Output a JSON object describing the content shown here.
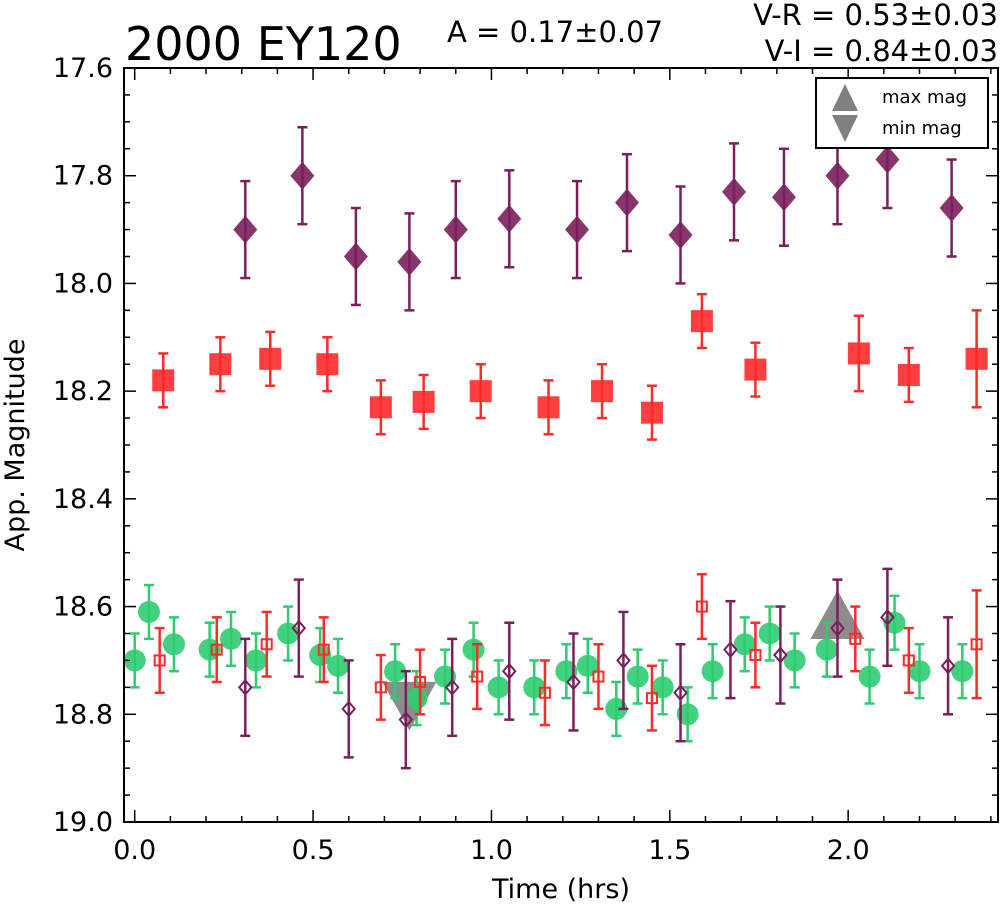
{
  "chart_data": {
    "type": "scatter",
    "title": "2000 EY120",
    "amplitude_label": "A  = 0.17±0.07",
    "color_labels": [
      "V-R = 0.53±0.03",
      "V-I  = 0.84±0.03"
    ],
    "xlabel": "Time (hrs)",
    "ylabel": "App. Magnitude",
    "xlim": [
      -0.03,
      2.42
    ],
    "ylim": [
      19.0,
      17.6
    ],
    "y_inverted": true,
    "x_ticks": [
      0.0,
      0.5,
      1.0,
      1.5,
      2.0
    ],
    "x_tick_labels": [
      "0.0",
      "0.5",
      "1.0",
      "1.5",
      "2.0"
    ],
    "y_ticks": [
      17.6,
      17.8,
      18.0,
      18.2,
      18.4,
      18.6,
      18.8,
      19.0
    ],
    "y_tick_labels": [
      "17.6",
      "17.8",
      "18.0",
      "18.2",
      "18.4",
      "18.6",
      "18.8",
      "19.0"
    ],
    "grid": false,
    "legend": {
      "position": "top-right",
      "entries": [
        {
          "label": "max mag",
          "marker": "triangle-up",
          "color": "#808080"
        },
        {
          "label": "min mag",
          "marker": "triangle-down",
          "color": "#808080"
        }
      ]
    },
    "colors": {
      "green": "#2ecc71",
      "red": "#ff2a2a",
      "purple": "#7a1f5c",
      "extrema": "#808080"
    },
    "series": [
      {
        "id": "green-circles",
        "marker": "circle",
        "filled": true,
        "color": "#2ecc71",
        "x": [
          0.0,
          0.04,
          0.11,
          0.21,
          0.27,
          0.34,
          0.43,
          0.52,
          0.57,
          0.73,
          0.79,
          0.87,
          0.95,
          1.02,
          1.12,
          1.21,
          1.27,
          1.35,
          1.41,
          1.48,
          1.55,
          1.62,
          1.71,
          1.78,
          1.85,
          1.94,
          2.06,
          2.13,
          2.2,
          2.32
        ],
        "y": [
          18.7,
          18.61,
          18.67,
          18.68,
          18.66,
          18.7,
          18.65,
          18.69,
          18.71,
          18.72,
          18.77,
          18.73,
          18.68,
          18.75,
          18.75,
          18.72,
          18.71,
          18.79,
          18.73,
          18.75,
          18.8,
          18.72,
          18.67,
          18.65,
          18.7,
          18.68,
          18.73,
          18.63,
          18.72,
          18.72
        ],
        "err": [
          0.05,
          0.05,
          0.05,
          0.05,
          0.05,
          0.05,
          0.05,
          0.05,
          0.05,
          0.05,
          0.05,
          0.05,
          0.05,
          0.05,
          0.05,
          0.05,
          0.05,
          0.05,
          0.05,
          0.05,
          0.05,
          0.05,
          0.05,
          0.05,
          0.05,
          0.05,
          0.05,
          0.05,
          0.05,
          0.05
        ]
      },
      {
        "id": "red-squares-open",
        "marker": "square",
        "filled": false,
        "color": "#ff2a2a",
        "x": [
          0.07,
          0.23,
          0.37,
          0.53,
          0.69,
          0.8,
          0.96,
          1.15,
          1.3,
          1.45,
          1.59,
          1.74,
          2.02,
          2.17,
          2.36
        ],
        "y": [
          18.7,
          18.68,
          18.67,
          18.68,
          18.75,
          18.74,
          18.73,
          18.76,
          18.73,
          18.77,
          18.6,
          18.69,
          18.66,
          18.7,
          18.67
        ],
        "err": [
          0.06,
          0.06,
          0.06,
          0.06,
          0.06,
          0.06,
          0.06,
          0.06,
          0.06,
          0.06,
          0.06,
          0.06,
          0.06,
          0.06,
          0.1
        ]
      },
      {
        "id": "purple-diamonds-open",
        "marker": "diamond",
        "filled": false,
        "color": "#7a1f5c",
        "x": [
          0.31,
          0.46,
          0.6,
          0.76,
          0.89,
          1.05,
          1.23,
          1.37,
          1.53,
          1.67,
          1.81,
          1.97,
          2.11,
          2.28
        ],
        "y": [
          18.75,
          18.64,
          18.79,
          18.81,
          18.75,
          18.72,
          18.74,
          18.7,
          18.76,
          18.68,
          18.69,
          18.64,
          18.62,
          18.71
        ],
        "err": [
          0.09,
          0.09,
          0.09,
          0.09,
          0.09,
          0.09,
          0.09,
          0.09,
          0.09,
          0.09,
          0.09,
          0.09,
          0.09,
          0.09
        ]
      },
      {
        "id": "red-squares-filled",
        "marker": "square",
        "filled": true,
        "color": "#ff2a2a",
        "x": [
          0.08,
          0.24,
          0.38,
          0.54,
          0.69,
          0.81,
          0.97,
          1.16,
          1.31,
          1.45,
          1.59,
          1.74,
          2.03,
          2.17,
          2.36
        ],
        "y": [
          18.18,
          18.15,
          18.14,
          18.15,
          18.23,
          18.22,
          18.2,
          18.23,
          18.2,
          18.24,
          18.07,
          18.16,
          18.13,
          18.17,
          18.14
        ],
        "err": [
          0.05,
          0.05,
          0.05,
          0.05,
          0.05,
          0.05,
          0.05,
          0.05,
          0.05,
          0.05,
          0.05,
          0.05,
          0.07,
          0.05,
          0.09
        ]
      },
      {
        "id": "purple-diamonds-filled",
        "marker": "diamond",
        "filled": true,
        "color": "#7a1f5c",
        "x": [
          0.31,
          0.47,
          0.62,
          0.77,
          0.9,
          1.05,
          1.24,
          1.38,
          1.53,
          1.68,
          1.82,
          1.97,
          2.11,
          2.29
        ],
        "y": [
          17.9,
          17.8,
          17.95,
          17.96,
          17.9,
          17.88,
          17.9,
          17.85,
          17.91,
          17.83,
          17.84,
          17.8,
          17.77,
          17.86
        ],
        "err": [
          0.09,
          0.09,
          0.09,
          0.09,
          0.09,
          0.09,
          0.09,
          0.09,
          0.09,
          0.09,
          0.09,
          0.09,
          0.09,
          0.09
        ]
      }
    ],
    "extrema": [
      {
        "label": "max mag",
        "marker": "triangle-up",
        "x": 1.97,
        "y": 18.62
      },
      {
        "label": "min mag",
        "marker": "triangle-down",
        "x": 0.77,
        "y": 18.78
      }
    ]
  }
}
